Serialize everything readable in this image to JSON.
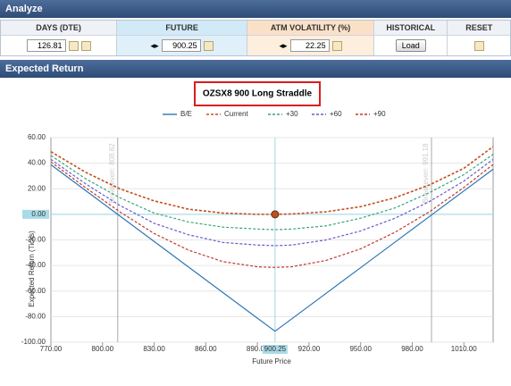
{
  "header": "Analyze",
  "columns": [
    {
      "label": "DAYS (DTE)",
      "value": "126.81"
    },
    {
      "label": "FUTURE",
      "value": "900.25"
    },
    {
      "label": "ATM VOLATILITY (%)",
      "value": "22.25"
    },
    {
      "label": "HISTORICAL",
      "button": "Load"
    },
    {
      "label": "RESET"
    }
  ],
  "section": "Expected Return",
  "chart_data": {
    "type": "line",
    "title": "OZSX8 900 Long Straddle",
    "x_label": "Future Price",
    "y_label": "Expected Return (Ticks)",
    "x": [
      770,
      790,
      810,
      830,
      850,
      870,
      890,
      900.25,
      910,
      930,
      950,
      970,
      990,
      1010,
      1027
    ],
    "series": [
      {
        "name": "B/E",
        "color": "#2e75b6",
        "style": "solid",
        "values": [
          38.8,
          18.8,
          -1.2,
          -21.2,
          -41.2,
          -61.2,
          -81.2,
          -91.4,
          -81.7,
          -61.7,
          -41.7,
          -21.7,
          -1.7,
          18.3,
          35.3
        ]
      },
      {
        "name": "Current",
        "color": "#c0501f",
        "style": "dashed",
        "values": [
          49,
          33,
          20,
          10.5,
          4,
          1,
          0,
          0,
          0.3,
          2,
          6,
          13,
          23,
          36,
          53
        ]
      },
      {
        "name": "+30",
        "color": "#3aa57a",
        "style": "dashed",
        "values": [
          46,
          28,
          13,
          1,
          -6,
          -10,
          -11.5,
          -12,
          -11.5,
          -9,
          -3,
          5,
          17,
          31,
          47
        ]
      },
      {
        "name": "+60",
        "color": "#6a5acd",
        "style": "dashed",
        "values": [
          43,
          24,
          7,
          -7,
          -16,
          -22,
          -24,
          -24.5,
          -24,
          -20,
          -13,
          -3,
          10,
          26,
          43
        ]
      },
      {
        "name": "+90",
        "color": "#c0392b",
        "style": "dashed",
        "values": [
          41,
          21,
          2,
          -15,
          -28,
          -37,
          -41,
          -41.5,
          -41,
          -36,
          -27,
          -14,
          2,
          21,
          39
        ]
      }
    ],
    "xlim": [
      770,
      1027
    ],
    "ylim": [
      -100,
      60
    ],
    "xticks": [
      {
        "value": 770,
        "label": "770.00"
      },
      {
        "value": 800,
        "label": "800.00"
      },
      {
        "value": 830,
        "label": "830.00"
      },
      {
        "value": 860,
        "label": "860.00"
      },
      {
        "value": 890,
        "label": "890.00"
      },
      {
        "value": 920,
        "label": "920.00"
      },
      {
        "value": 950,
        "label": "950.00"
      },
      {
        "value": 980,
        "label": "980.00"
      },
      {
        "value": 1010,
        "label": "1010.00"
      }
    ],
    "yticks": [
      {
        "value": 60,
        "label": "60.00"
      },
      {
        "value": 40,
        "label": "40.00"
      },
      {
        "value": 20,
        "label": "20.00"
      },
      {
        "value": 0,
        "label": "0.00"
      },
      {
        "value": -20,
        "label": "-20.00"
      },
      {
        "value": -40,
        "label": "-40.00"
      },
      {
        "value": -60,
        "label": "-60.00"
      },
      {
        "value": -80,
        "label": "-80.00"
      },
      {
        "value": -100,
        "label": "-100.00"
      }
    ],
    "grid": true,
    "breakevens": [
      {
        "value": 808.82,
        "label": "Breakeven: 808.82"
      },
      {
        "value": 991.18,
        "label": "Breakeven: 991.18"
      }
    ],
    "current_point": {
      "x": 900.25,
      "value": 0
    },
    "cursor_x": {
      "value": 900.25,
      "label": "900.25"
    },
    "cursor_y": {
      "value": 0,
      "label": "0.00"
    }
  }
}
